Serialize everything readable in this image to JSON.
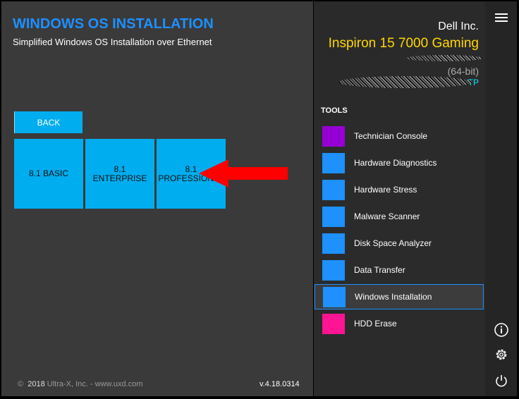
{
  "header": {
    "title": "WINDOWS OS INSTALLATION",
    "subtitle": "Simplified Windows OS Installation over Ethernet"
  },
  "buttons": {
    "back": "BACK"
  },
  "editions": [
    {
      "line1": "8.1 BASIC",
      "line2": ""
    },
    {
      "line1": "8.1",
      "line2": "ENTERPRISE"
    },
    {
      "line1": "8.1",
      "line2": "PROFESSIONAL"
    }
  ],
  "footer": {
    "copyright_symbol": "©",
    "year": "2018",
    "company": "Ultra-X, Inc. - www.uxd.com",
    "version": "v.4.18.0314"
  },
  "device": {
    "manufacturer": "Dell Inc.",
    "model": "Inspiron 15 7000 Gaming",
    "arch": "(64-bit)",
    "os_suffix": "TP"
  },
  "tools": {
    "header": "TOOLS",
    "items": [
      {
        "label": "Technician Console",
        "color": "#9400d3"
      },
      {
        "label": "Hardware Diagnostics",
        "color": "#1e90ff"
      },
      {
        "label": "Hardware Stress",
        "color": "#1e90ff"
      },
      {
        "label": "Malware Scanner",
        "color": "#1e90ff"
      },
      {
        "label": "Disk Space Analyzer",
        "color": "#1e90ff"
      },
      {
        "label": "Data Transfer",
        "color": "#1e90ff"
      },
      {
        "label": "Windows Installation",
        "color": "#1e90ff",
        "selected": true
      },
      {
        "label": "HDD Erase",
        "color": "#ff1493"
      }
    ]
  },
  "colors": {
    "accent": "#1e90ff",
    "tile": "#00adef",
    "model": "#ffd700",
    "arrow": "#ff0000"
  },
  "icons": [
    "menu-icon",
    "info-icon",
    "gear-icon",
    "power-icon",
    "arrow-annotation"
  ]
}
